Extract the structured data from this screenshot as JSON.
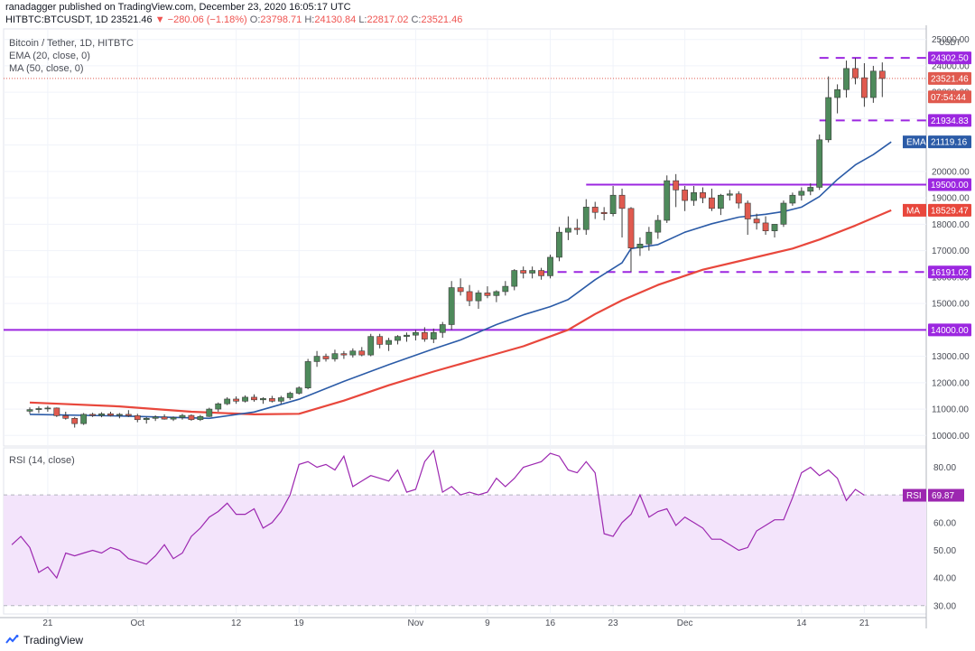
{
  "header": {
    "publish_line": "ranadagger published on TradingView.com, December 23, 2020 16:05:17 UTC",
    "symbol": "HITBTC:BTCUSDT, 1D",
    "price": "23521.46",
    "change": "▼ −280.06 (−1.18%)",
    "o_label": "O:",
    "o_value": "23798.71",
    "h_label": "H:",
    "h_value": "24130.84",
    "l_label": "L:",
    "l_value": "22817.02",
    "c_label": "C:",
    "c_value": "23521.46"
  },
  "legend": {
    "title": "Bitcoin / Tether, 1D, HITBTC",
    "ema": "EMA (20, close, 0)",
    "ma": "MA (50, close, 0)",
    "rsi": "RSI (14, close)"
  },
  "brand": {
    "name": "TradingView"
  },
  "colors": {
    "up": "#4e8a5b",
    "down": "#e05a4f",
    "ema": "#2b5ba7",
    "ma": "#e8473c",
    "level": "#9c27e0",
    "rsi": "#9c27b0",
    "rsi_band": "#f3e4fb"
  },
  "chart_data": [
    {
      "type": "candlestick",
      "title": "Bitcoin / Tether, 1D, HITBTC",
      "y_unit": "USDT",
      "ylim": [
        9600,
        25400
      ],
      "yticks": [
        10000,
        11000,
        12000,
        13000,
        14000,
        15000,
        16000,
        17000,
        18000,
        19000,
        20000,
        21000,
        22000,
        23000,
        24000,
        25000
      ],
      "ytick_labels": [
        "10000.00",
        "11000.00",
        "12000.00",
        "13000.00",
        "14000.00",
        "15000.00",
        "16000.00",
        "17000.00",
        "18000.00",
        "19000.00",
        "20000.00",
        "21000.00",
        "22000.00",
        "23000.00",
        "24000.00",
        "25000.00"
      ],
      "x_tick_labels": [
        {
          "day": 2,
          "label": "21"
        },
        {
          "day": 12,
          "label": "Oct"
        },
        {
          "day": 23,
          "label": "12"
        },
        {
          "day": 30,
          "label": "19"
        },
        {
          "day": 43,
          "label": "Nov"
        },
        {
          "day": 51,
          "label": "9"
        },
        {
          "day": 58,
          "label": "16"
        },
        {
          "day": 65,
          "label": "23"
        },
        {
          "day": 73,
          "label": "Dec"
        },
        {
          "day": 86,
          "label": "14"
        },
        {
          "day": 93,
          "label": "21"
        }
      ],
      "grid": true,
      "candles": [
        [
          10920,
          11060,
          10820,
          10980
        ],
        [
          10980,
          11100,
          10850,
          11020
        ],
        [
          11020,
          11120,
          10900,
          11040
        ],
        [
          11040,
          11060,
          10700,
          10750
        ],
        [
          10750,
          10900,
          10600,
          10650
        ],
        [
          10650,
          10700,
          10300,
          10450
        ],
        [
          10450,
          10850,
          10400,
          10800
        ],
        [
          10800,
          10860,
          10700,
          10760
        ],
        [
          10760,
          10880,
          10690,
          10820
        ],
        [
          10820,
          10900,
          10720,
          10760
        ],
        [
          10760,
          10850,
          10650,
          10800
        ],
        [
          10800,
          10960,
          10700,
          10750
        ],
        [
          10750,
          10820,
          10500,
          10600
        ],
        [
          10600,
          10700,
          10450,
          10650
        ],
        [
          10650,
          10760,
          10550,
          10700
        ],
        [
          10700,
          10800,
          10600,
          10620
        ],
        [
          10620,
          10720,
          10550,
          10680
        ],
        [
          10680,
          10820,
          10600,
          10760
        ],
        [
          10760,
          10800,
          10560,
          10600
        ],
        [
          10600,
          10780,
          10550,
          10720
        ],
        [
          10720,
          11050,
          10700,
          11000
        ],
        [
          11000,
          11250,
          10900,
          11200
        ],
        [
          11200,
          11450,
          11150,
          11380
        ],
        [
          11380,
          11480,
          11200,
          11300
        ],
        [
          11300,
          11520,
          11250,
          11450
        ],
        [
          11450,
          11560,
          11280,
          11350
        ],
        [
          11350,
          11450,
          11200,
          11400
        ],
        [
          11400,
          11500,
          11250,
          11300
        ],
        [
          11300,
          11500,
          11200,
          11430
        ],
        [
          11430,
          11660,
          11350,
          11600
        ],
        [
          11600,
          11860,
          11550,
          11800
        ],
        [
          11800,
          12900,
          11750,
          12800
        ],
        [
          12800,
          13200,
          12600,
          13000
        ],
        [
          13000,
          13100,
          12800,
          12900
        ],
        [
          12900,
          13250,
          12800,
          13100
        ],
        [
          13100,
          13200,
          12900,
          13050
        ],
        [
          13050,
          13300,
          12950,
          13200
        ],
        [
          13200,
          13350,
          13000,
          13050
        ],
        [
          13050,
          13850,
          13000,
          13750
        ],
        [
          13750,
          13850,
          13300,
          13450
        ],
        [
          13450,
          13700,
          13200,
          13600
        ],
        [
          13600,
          13800,
          13450,
          13750
        ],
        [
          13750,
          13900,
          13550,
          13800
        ],
        [
          13800,
          14000,
          13600,
          13900
        ],
        [
          13900,
          14100,
          13550,
          13650
        ],
        [
          13650,
          14050,
          13500,
          13900
        ],
        [
          13900,
          14300,
          13700,
          14200
        ],
        [
          14200,
          15850,
          14000,
          15600
        ],
        [
          15600,
          15950,
          15300,
          15450
        ],
        [
          15450,
          15700,
          14900,
          15100
        ],
        [
          15100,
          15500,
          14800,
          15400
        ],
        [
          15400,
          15650,
          15200,
          15300
        ],
        [
          15300,
          15500,
          15050,
          15450
        ],
        [
          15450,
          15850,
          15300,
          15650
        ],
        [
          15650,
          16300,
          15500,
          16250
        ],
        [
          16250,
          16400,
          15950,
          16150
        ],
        [
          16150,
          16400,
          15950,
          16250
        ],
        [
          16250,
          16350,
          15900,
          16050
        ],
        [
          16050,
          16850,
          15950,
          16750
        ],
        [
          16750,
          17900,
          16600,
          17700
        ],
        [
          17700,
          18300,
          17400,
          17850
        ],
        [
          17850,
          18200,
          17600,
          17800
        ],
        [
          17800,
          18950,
          17600,
          18650
        ],
        [
          18650,
          18850,
          18200,
          18450
        ],
        [
          18450,
          18650,
          18150,
          18400
        ],
        [
          18400,
          19450,
          18300,
          19100
        ],
        [
          19100,
          19350,
          17500,
          18600
        ],
        [
          18600,
          18650,
          16200,
          17100
        ],
        [
          17100,
          17500,
          16800,
          17250
        ],
        [
          17250,
          17900,
          17000,
          17700
        ],
        [
          17700,
          18350,
          17450,
          18150
        ],
        [
          18150,
          19850,
          18050,
          19650
        ],
        [
          19650,
          19900,
          18650,
          19300
        ],
        [
          19300,
          19450,
          18500,
          18900
        ],
        [
          18900,
          19450,
          18700,
          19200
        ],
        [
          19200,
          19400,
          18800,
          19000
        ],
        [
          19000,
          19350,
          18500,
          18600
        ],
        [
          18600,
          19150,
          18350,
          19100
        ],
        [
          19100,
          19300,
          18900,
          19150
        ],
        [
          19150,
          19250,
          18600,
          18800
        ],
        [
          18800,
          18900,
          17600,
          18200
        ],
        [
          18200,
          18400,
          17800,
          18050
        ],
        [
          18050,
          18300,
          17600,
          17750
        ],
        [
          17750,
          18000,
          17500,
          18000
        ],
        [
          18000,
          18900,
          17900,
          18800
        ],
        [
          18800,
          19200,
          18700,
          19100
        ],
        [
          19100,
          19400,
          18900,
          19250
        ],
        [
          19250,
          19550,
          19100,
          19400
        ],
        [
          19400,
          21400,
          19300,
          21200
        ],
        [
          21200,
          23600,
          21100,
          22800
        ],
        [
          22800,
          23300,
          22200,
          23100
        ],
        [
          23100,
          24200,
          22800,
          23900
        ],
        [
          23900,
          24300,
          23300,
          23550
        ],
        [
          23550,
          24100,
          22450,
          22800
        ],
        [
          22800,
          24000,
          22600,
          23800
        ],
        [
          23800,
          24130.84,
          22817.02,
          23521.46
        ]
      ],
      "series": [
        {
          "name": "EMA (20, close, 0)",
          "last": 21119.16,
          "values": [
            [
              0,
              10800
            ],
            [
              10,
              10740
            ],
            [
              20,
              10650
            ],
            [
              25,
              10890
            ],
            [
              30,
              11370
            ],
            [
              35,
              12050
            ],
            [
              40,
              12680
            ],
            [
              45,
              13280
            ],
            [
              48,
              13620
            ],
            [
              52,
              14200
            ],
            [
              55,
              14570
            ],
            [
              58,
              14880
            ],
            [
              60,
              15150
            ],
            [
              63,
              15900
            ],
            [
              66,
              16540
            ],
            [
              67,
              17080
            ],
            [
              70,
              17230
            ],
            [
              73,
              17700
            ],
            [
              76,
              18020
            ],
            [
              79,
              18270
            ],
            [
              82,
              18380
            ],
            [
              84,
              18480
            ],
            [
              86,
              18650
            ],
            [
              88,
              19050
            ],
            [
              90,
              19700
            ],
            [
              92,
              20250
            ],
            [
              94,
              20640
            ],
            [
              96,
              21119.16
            ]
          ]
        },
        {
          "name": "MA (50, close, 0)",
          "last": 18529.47,
          "values": [
            [
              0,
              11250
            ],
            [
              10,
              11100
            ],
            [
              18,
              10900
            ],
            [
              25,
              10800
            ],
            [
              30,
              10820
            ],
            [
              35,
              11320
            ],
            [
              40,
              11900
            ],
            [
              45,
              12420
            ],
            [
              50,
              12900
            ],
            [
              55,
              13380
            ],
            [
              60,
              14000
            ],
            [
              63,
              14600
            ],
            [
              66,
              15120
            ],
            [
              70,
              15700
            ],
            [
              75,
              16280
            ],
            [
              80,
              16680
            ],
            [
              85,
              17080
            ],
            [
              88,
              17420
            ],
            [
              92,
              17950
            ],
            [
              96,
              18529.47
            ]
          ]
        }
      ],
      "levels": [
        {
          "label": "24302.50",
          "value": 24302.5,
          "style": "dashed",
          "from_day": 88
        },
        {
          "label": "21934.83",
          "value": 21934.83,
          "style": "dashed",
          "from_day": 88
        },
        {
          "label": "19500.00",
          "value": 19500,
          "style": "solid",
          "from_day": 62
        },
        {
          "label": "16191.02",
          "value": 16191.02,
          "style": "dashed",
          "from_day": 57
        },
        {
          "label": "14000.00",
          "value": 14000,
          "style": "solid",
          "from_day": -1
        }
      ],
      "price_tags": [
        {
          "label": "23521.46",
          "value": 23521.46,
          "kind": "last"
        },
        {
          "label": "07:54:44",
          "value": 23100,
          "kind": "countdown"
        },
        {
          "label": "EMA",
          "value_label": "21119.16",
          "value": 21119.16,
          "kind": "ema"
        },
        {
          "label": "MA",
          "value_label": "18529.47",
          "value": 18529.47,
          "kind": "ma"
        }
      ]
    },
    {
      "type": "line",
      "title": "RSI (14, close)",
      "ylim": [
        27,
        87
      ],
      "yticks": [
        30,
        40,
        50,
        60,
        70,
        80
      ],
      "ytick_labels": [
        "30.00",
        "40.00",
        "50.00",
        "60.00",
        "70.00",
        "80.00"
      ],
      "band": [
        30,
        70
      ],
      "last": 69.87,
      "last_label": "RSI",
      "last_value_label": "69.87",
      "series": [
        {
          "name": "RSI (14, close)",
          "values": [
            52,
            55,
            51,
            42,
            44,
            40,
            49,
            48,
            49,
            50,
            49,
            51,
            50,
            47,
            46,
            45,
            48,
            52,
            47,
            49,
            55,
            58,
            62,
            64,
            67,
            63,
            63,
            65,
            58,
            60,
            64,
            70,
            81,
            82,
            80,
            81,
            79,
            84,
            73,
            75,
            77,
            76,
            75,
            79,
            71,
            72,
            82,
            86,
            71,
            73,
            70,
            71,
            70,
            71,
            76,
            73,
            76,
            80,
            81,
            82,
            85,
            84,
            79,
            78,
            82,
            78,
            56,
            55,
            60,
            63,
            70,
            62,
            64,
            65,
            59,
            62,
            60,
            58,
            54,
            54,
            52,
            50,
            51,
            57,
            59,
            61,
            61,
            69,
            78,
            80,
            77,
            79,
            76,
            68,
            72,
            69.87
          ]
        }
      ]
    }
  ]
}
